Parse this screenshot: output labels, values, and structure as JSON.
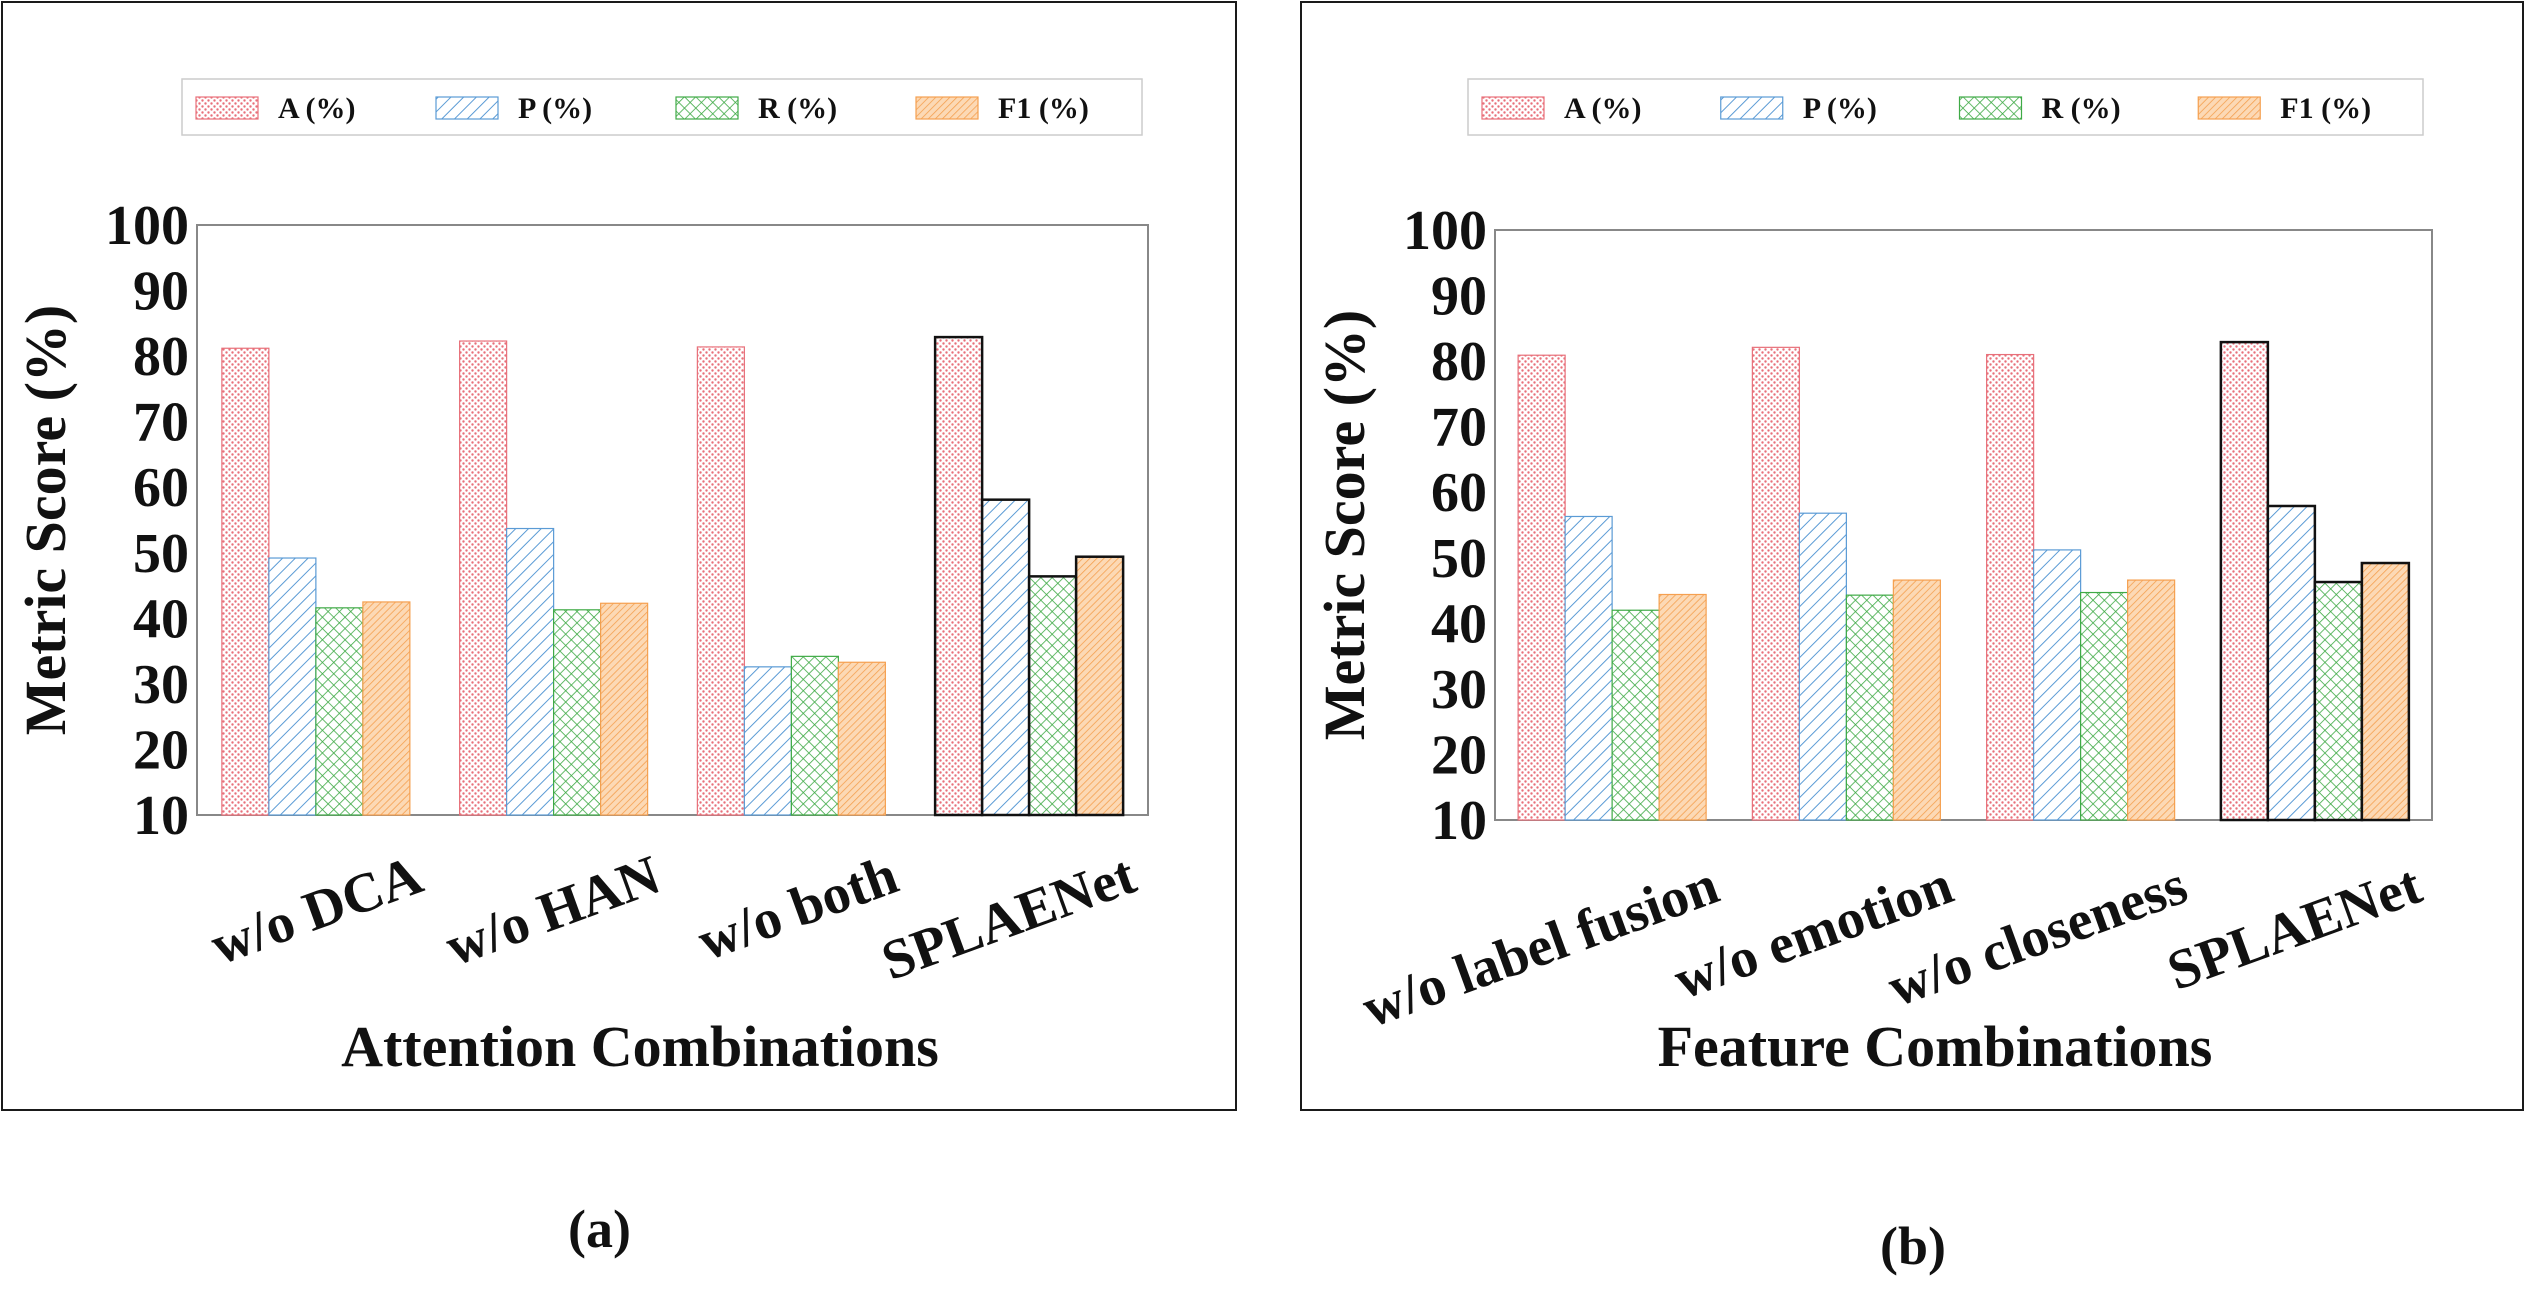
{
  "colors": {
    "A": "#e8707a",
    "P": "#5b9bd5",
    "R": "#3faa46",
    "F1": "#f5a050",
    "frame": "#1a1a1a",
    "axis": "#888888"
  },
  "chart_data": [
    {
      "type": "bar",
      "caption": "(a)",
      "xlabel": "Attention Combinations",
      "ylabel": "Metric Score (%)",
      "ylim": [
        10,
        100
      ],
      "yticks": [
        "10",
        "20",
        "30",
        "40",
        "50",
        "60",
        "70",
        "80",
        "90",
        "100"
      ],
      "legend_position": "top",
      "categories": [
        "w/o DCA",
        "w/o HAN",
        "w/o both",
        "SPLAENet"
      ],
      "highlight_category": "SPLAENet",
      "series": [
        {
          "name": "A (%)",
          "key": "A",
          "pattern": "dots",
          "values": [
            81.2,
            82.3,
            81.4,
            82.9
          ]
        },
        {
          "name": "P (%)",
          "key": "P",
          "pattern": "diag",
          "values": [
            49.2,
            53.7,
            32.6,
            58.1
          ]
        },
        {
          "name": "R (%)",
          "key": "R",
          "pattern": "cross",
          "values": [
            41.6,
            41.3,
            34.2,
            46.4
          ]
        },
        {
          "name": "F1 (%)",
          "key": "F1",
          "pattern": "fine",
          "values": [
            42.5,
            42.3,
            33.3,
            49.4
          ]
        }
      ]
    },
    {
      "type": "bar",
      "caption": "(b)",
      "xlabel": "Feature Combinations",
      "ylabel": "Metric Score (%)",
      "ylim": [
        10,
        100
      ],
      "yticks": [
        "10",
        "20",
        "30",
        "40",
        "50",
        "60",
        "70",
        "80",
        "90",
        "100"
      ],
      "legend_position": "top",
      "categories": [
        "w/o label fusion",
        "w/o emotion",
        "w/o closeness",
        "SPLAENet"
      ],
      "highlight_category": "SPLAENet",
      "series": [
        {
          "name": "A (%)",
          "key": "A",
          "pattern": "dots",
          "values": [
            80.9,
            82.1,
            81.0,
            82.9
          ]
        },
        {
          "name": "P (%)",
          "key": "P",
          "pattern": "diag",
          "values": [
            56.3,
            56.8,
            51.2,
            57.9
          ]
        },
        {
          "name": "R (%)",
          "key": "R",
          "pattern": "cross",
          "values": [
            42.0,
            44.3,
            44.7,
            46.3
          ]
        },
        {
          "name": "F1 (%)",
          "key": "F1",
          "pattern": "fine",
          "values": [
            44.4,
            46.6,
            46.6,
            49.2
          ]
        }
      ]
    }
  ]
}
